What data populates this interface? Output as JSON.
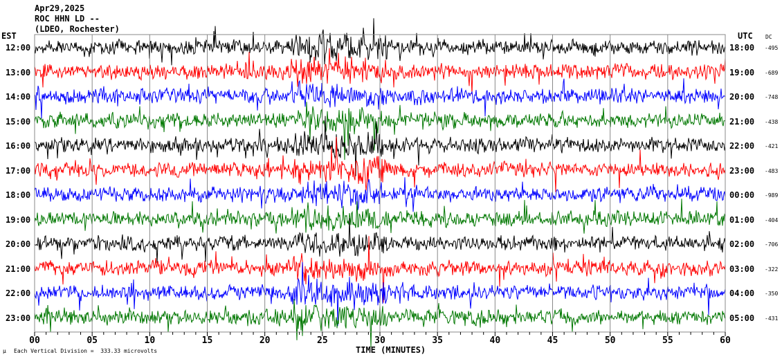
{
  "header": {
    "date": "Apr29,2025",
    "station": "ROC HHN LD --",
    "network": "(LDEO, Rochester)"
  },
  "left_axis_label": "EST",
  "right_axis_label": "UTC",
  "dc_label": "DC",
  "colors": [
    "#000000",
    "#ff0000",
    "#0000ff",
    "#007700"
  ],
  "chart_data": {
    "type": "line",
    "subtype": "helicorder",
    "xlabel": "TIME (MINUTES)",
    "xlim": [
      0,
      60
    ],
    "x_ticks": [
      "00",
      "05",
      "10",
      "15",
      "20",
      "25",
      "30",
      "35",
      "40",
      "45",
      "50",
      "55",
      "60"
    ],
    "rows": [
      {
        "est": "12:00",
        "utc": "18:00",
        "dc": "-495",
        "color": "#000000"
      },
      {
        "est": "13:00",
        "utc": "19:00",
        "dc": "-689",
        "color": "#ff0000"
      },
      {
        "est": "14:00",
        "utc": "20:00",
        "dc": "-748",
        "color": "#0000ff"
      },
      {
        "est": "15:00",
        "utc": "21:00",
        "dc": "-438",
        "color": "#007700"
      },
      {
        "est": "16:00",
        "utc": "22:00",
        "dc": "-421",
        "color": "#000000"
      },
      {
        "est": "17:00",
        "utc": "23:00",
        "dc": "-483",
        "color": "#ff0000"
      },
      {
        "est": "18:00",
        "utc": "00:00",
        "dc": "-989",
        "color": "#0000ff"
      },
      {
        "est": "19:00",
        "utc": "01:00",
        "dc": "-404",
        "color": "#007700"
      },
      {
        "est": "20:00",
        "utc": "02:00",
        "dc": "-706",
        "color": "#000000"
      },
      {
        "est": "21:00",
        "utc": "03:00",
        "dc": "-322",
        "color": "#ff0000"
      },
      {
        "est": "22:00",
        "utc": "04:00",
        "dc": "-350",
        "color": "#0000ff"
      },
      {
        "est": "23:00",
        "utc": "05:00",
        "dc": "-431",
        "color": "#007700"
      }
    ],
    "scale_note": "Each Vertical Division =  333.33 microvolts",
    "grid": true
  }
}
